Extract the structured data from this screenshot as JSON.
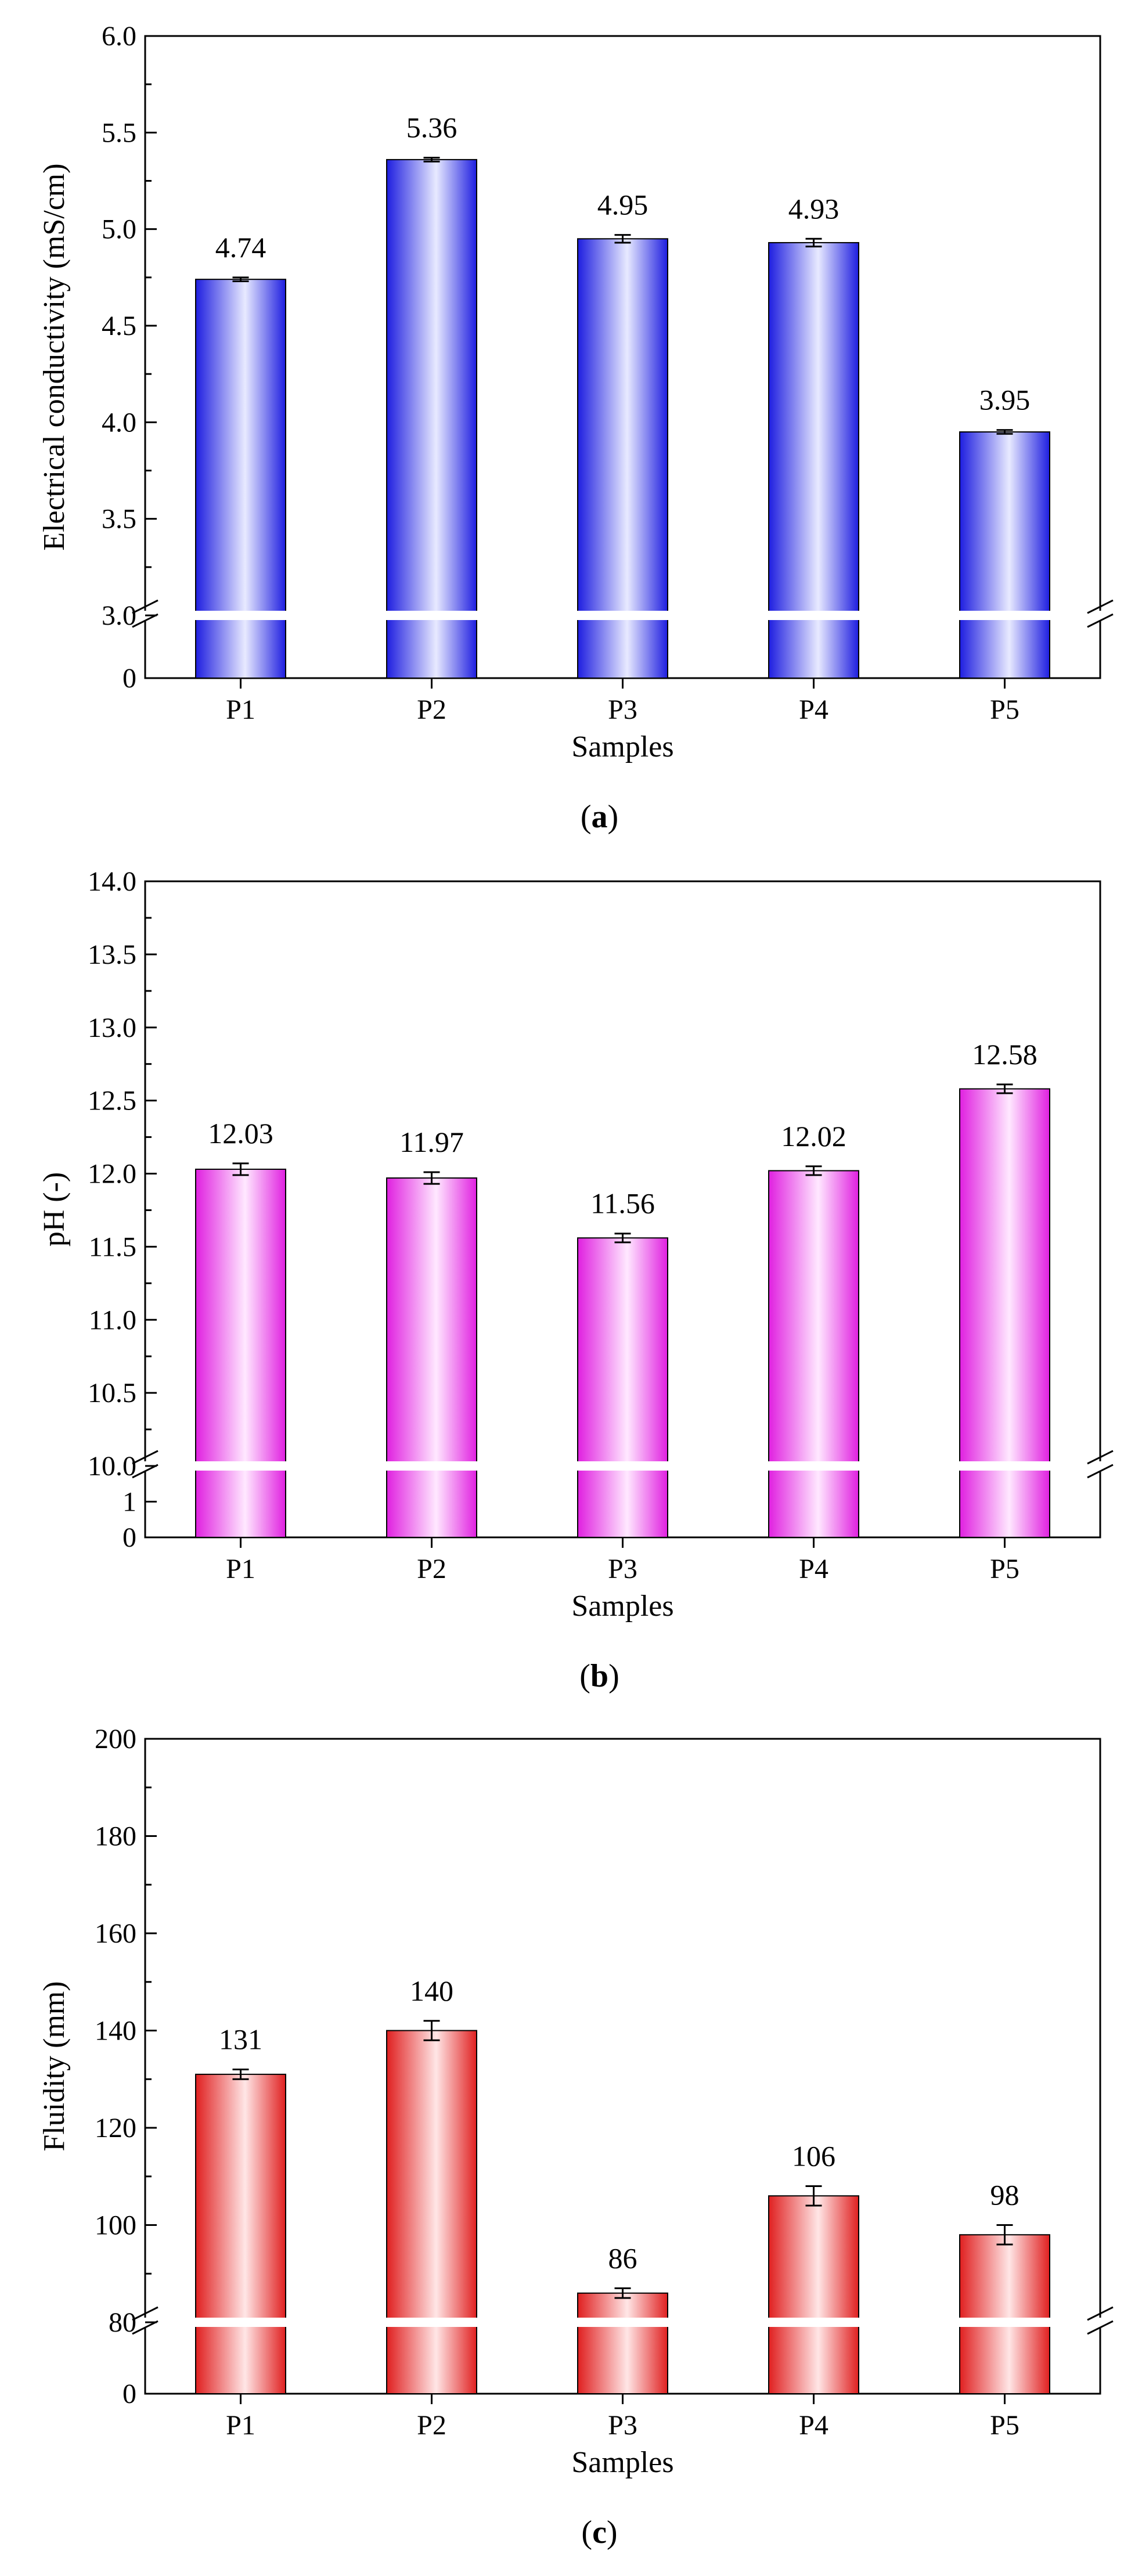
{
  "figure": {
    "panel_labels": [
      {
        "open": "(",
        "letter": "a",
        "close": ")"
      },
      {
        "open": "(",
        "letter": "b",
        "close": ")"
      },
      {
        "open": "(",
        "letter": "c",
        "close": ")"
      }
    ]
  },
  "chart_data": [
    {
      "type": "bar",
      "title": "",
      "xlabel": "Samples",
      "ylabel": "Electrical conductivity (mS/cm)",
      "categories": [
        "P1",
        "P2",
        "P3",
        "P4",
        "P5"
      ],
      "values": [
        4.74,
        5.36,
        4.95,
        4.93,
        3.95
      ],
      "errors": [
        0.01,
        0.01,
        0.02,
        0.02,
        0.01
      ],
      "data_labels": [
        "4.74",
        "5.36",
        "4.95",
        "4.93",
        "3.95"
      ],
      "ylim_upper": [
        3.0,
        6.0
      ],
      "yticks_upper": [
        "3.0",
        "3.5",
        "4.0",
        "4.5",
        "5.0",
        "5.5",
        "6.0"
      ],
      "ylim_lower": [
        0,
        1
      ],
      "yticks_lower": [
        "0"
      ],
      "axis_break": true,
      "bar_color": "#1e1ee0",
      "bar_highlight": "#e8eaff",
      "grid": false,
      "legend": "none"
    },
    {
      "type": "bar",
      "title": "",
      "xlabel": "Samples",
      "ylabel": "pH (-)",
      "categories": [
        "P1",
        "P2",
        "P3",
        "P4",
        "P5"
      ],
      "values": [
        12.03,
        11.97,
        11.56,
        12.02,
        12.58
      ],
      "errors": [
        0.04,
        0.04,
        0.03,
        0.03,
        0.03
      ],
      "data_labels": [
        "12.03",
        "11.97",
        "11.56",
        "12.02",
        "12.58"
      ],
      "ylim_upper": [
        10.0,
        14.0
      ],
      "yticks_upper": [
        "10.0",
        "10.5",
        "11.0",
        "11.5",
        "12.0",
        "12.5",
        "13.0",
        "13.5",
        "14.0"
      ],
      "ylim_lower": [
        0,
        2
      ],
      "yticks_lower": [
        "0",
        "1"
      ],
      "axis_break": true,
      "bar_color": "#e020e0",
      "bar_highlight": "#ffe8ff",
      "grid": false,
      "legend": "none"
    },
    {
      "type": "bar",
      "title": "",
      "xlabel": "Samples",
      "ylabel": "Fluidity (mm)",
      "categories": [
        "P1",
        "P2",
        "P3",
        "P4",
        "P5"
      ],
      "values": [
        131,
        140,
        86,
        106,
        98
      ],
      "errors": [
        1,
        2,
        1,
        2,
        2
      ],
      "data_labels": [
        "131",
        "140",
        "86",
        "106",
        "98"
      ],
      "ylim_upper": [
        80,
        200
      ],
      "yticks_upper": [
        "80",
        "100",
        "120",
        "140",
        "160",
        "180",
        "200"
      ],
      "ylim_lower": [
        0,
        20
      ],
      "yticks_lower": [
        "0"
      ],
      "axis_break": true,
      "bar_color": "#e02020",
      "bar_highlight": "#ffe6e6",
      "grid": false,
      "legend": "none"
    }
  ]
}
